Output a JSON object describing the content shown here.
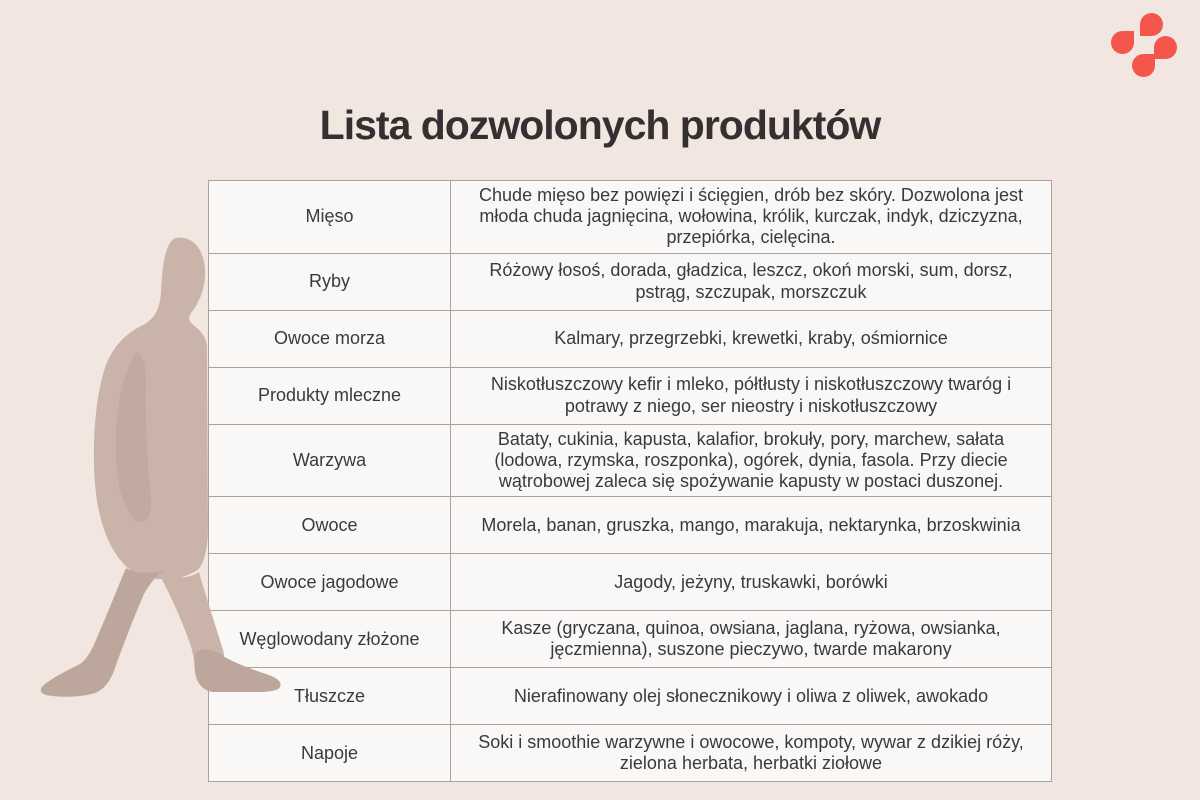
{
  "page": {
    "title": "Lista dozwolonych produktów"
  },
  "logo": {
    "icon": "four-teardrop-clover-logo",
    "color": "#f4564c"
  },
  "theme": {
    "background": "#f2e6e0",
    "cell_background": "#f9f8f7",
    "border_color": "#a8a3a1",
    "text_color": "#3a3a3a",
    "title_color": "#352f31",
    "silhouette_color": "#cab4aa",
    "silhouette_shade_color": "#bda69b"
  },
  "table": {
    "rows": [
      {
        "category": "Mięso",
        "products": "Chude mięso bez powięzi i ścięgien, drób bez skóry. Dozwolona jest młoda chuda jagnięcina, wołowina, królik, kurczak, indyk, dziczyzna, przepiórka, cielęcina."
      },
      {
        "category": "Ryby",
        "products": "Różowy łosoś, dorada, gładzica, leszcz, okoń morski, sum, dorsz, pstrąg, szczupak, morszczuk"
      },
      {
        "category": "Owoce morza",
        "products": "Kalmary, przegrzebki, krewetki, kraby, ośmiornice"
      },
      {
        "category": "Produkty mleczne",
        "products": "Niskotłuszczowy kefir i mleko, półtłusty i niskotłuszczowy twaróg i potrawy z niego, ser nieostry i niskotłuszczowy"
      },
      {
        "category": "Warzywa",
        "products": "Bataty, cukinia, kapusta, kalafior, brokuły, pory, marchew, sałata (lodowa, rzymska, roszponka), ogórek, dynia, fasola. Przy diecie wątrobowej zaleca się spożywanie kapusty w postaci duszonej."
      },
      {
        "category": "Owoce",
        "products": "Morela, banan, gruszka, mango, marakuja, nektarynka, brzoskwinia"
      },
      {
        "category": "Owoce jagodowe",
        "products": "Jagody, jeżyny, truskawki, borówki"
      },
      {
        "category": "Węglowodany złożone",
        "products": "Kasze (gryczana, quinoa, owsiana, jaglana, ryżowa, owsianka, jęczmienna), suszone pieczywo, twarde makarony"
      },
      {
        "category": "Tłuszcze",
        "products": "Nierafinowany olej słonecznikowy i oliwa z oliwek, awokado"
      },
      {
        "category": "Napoje",
        "products": "Soki i smoothie warzywne i owocowe, kompoty, wywar z dzikiej róży, zielona herbata, herbatki ziołowe"
      }
    ]
  }
}
